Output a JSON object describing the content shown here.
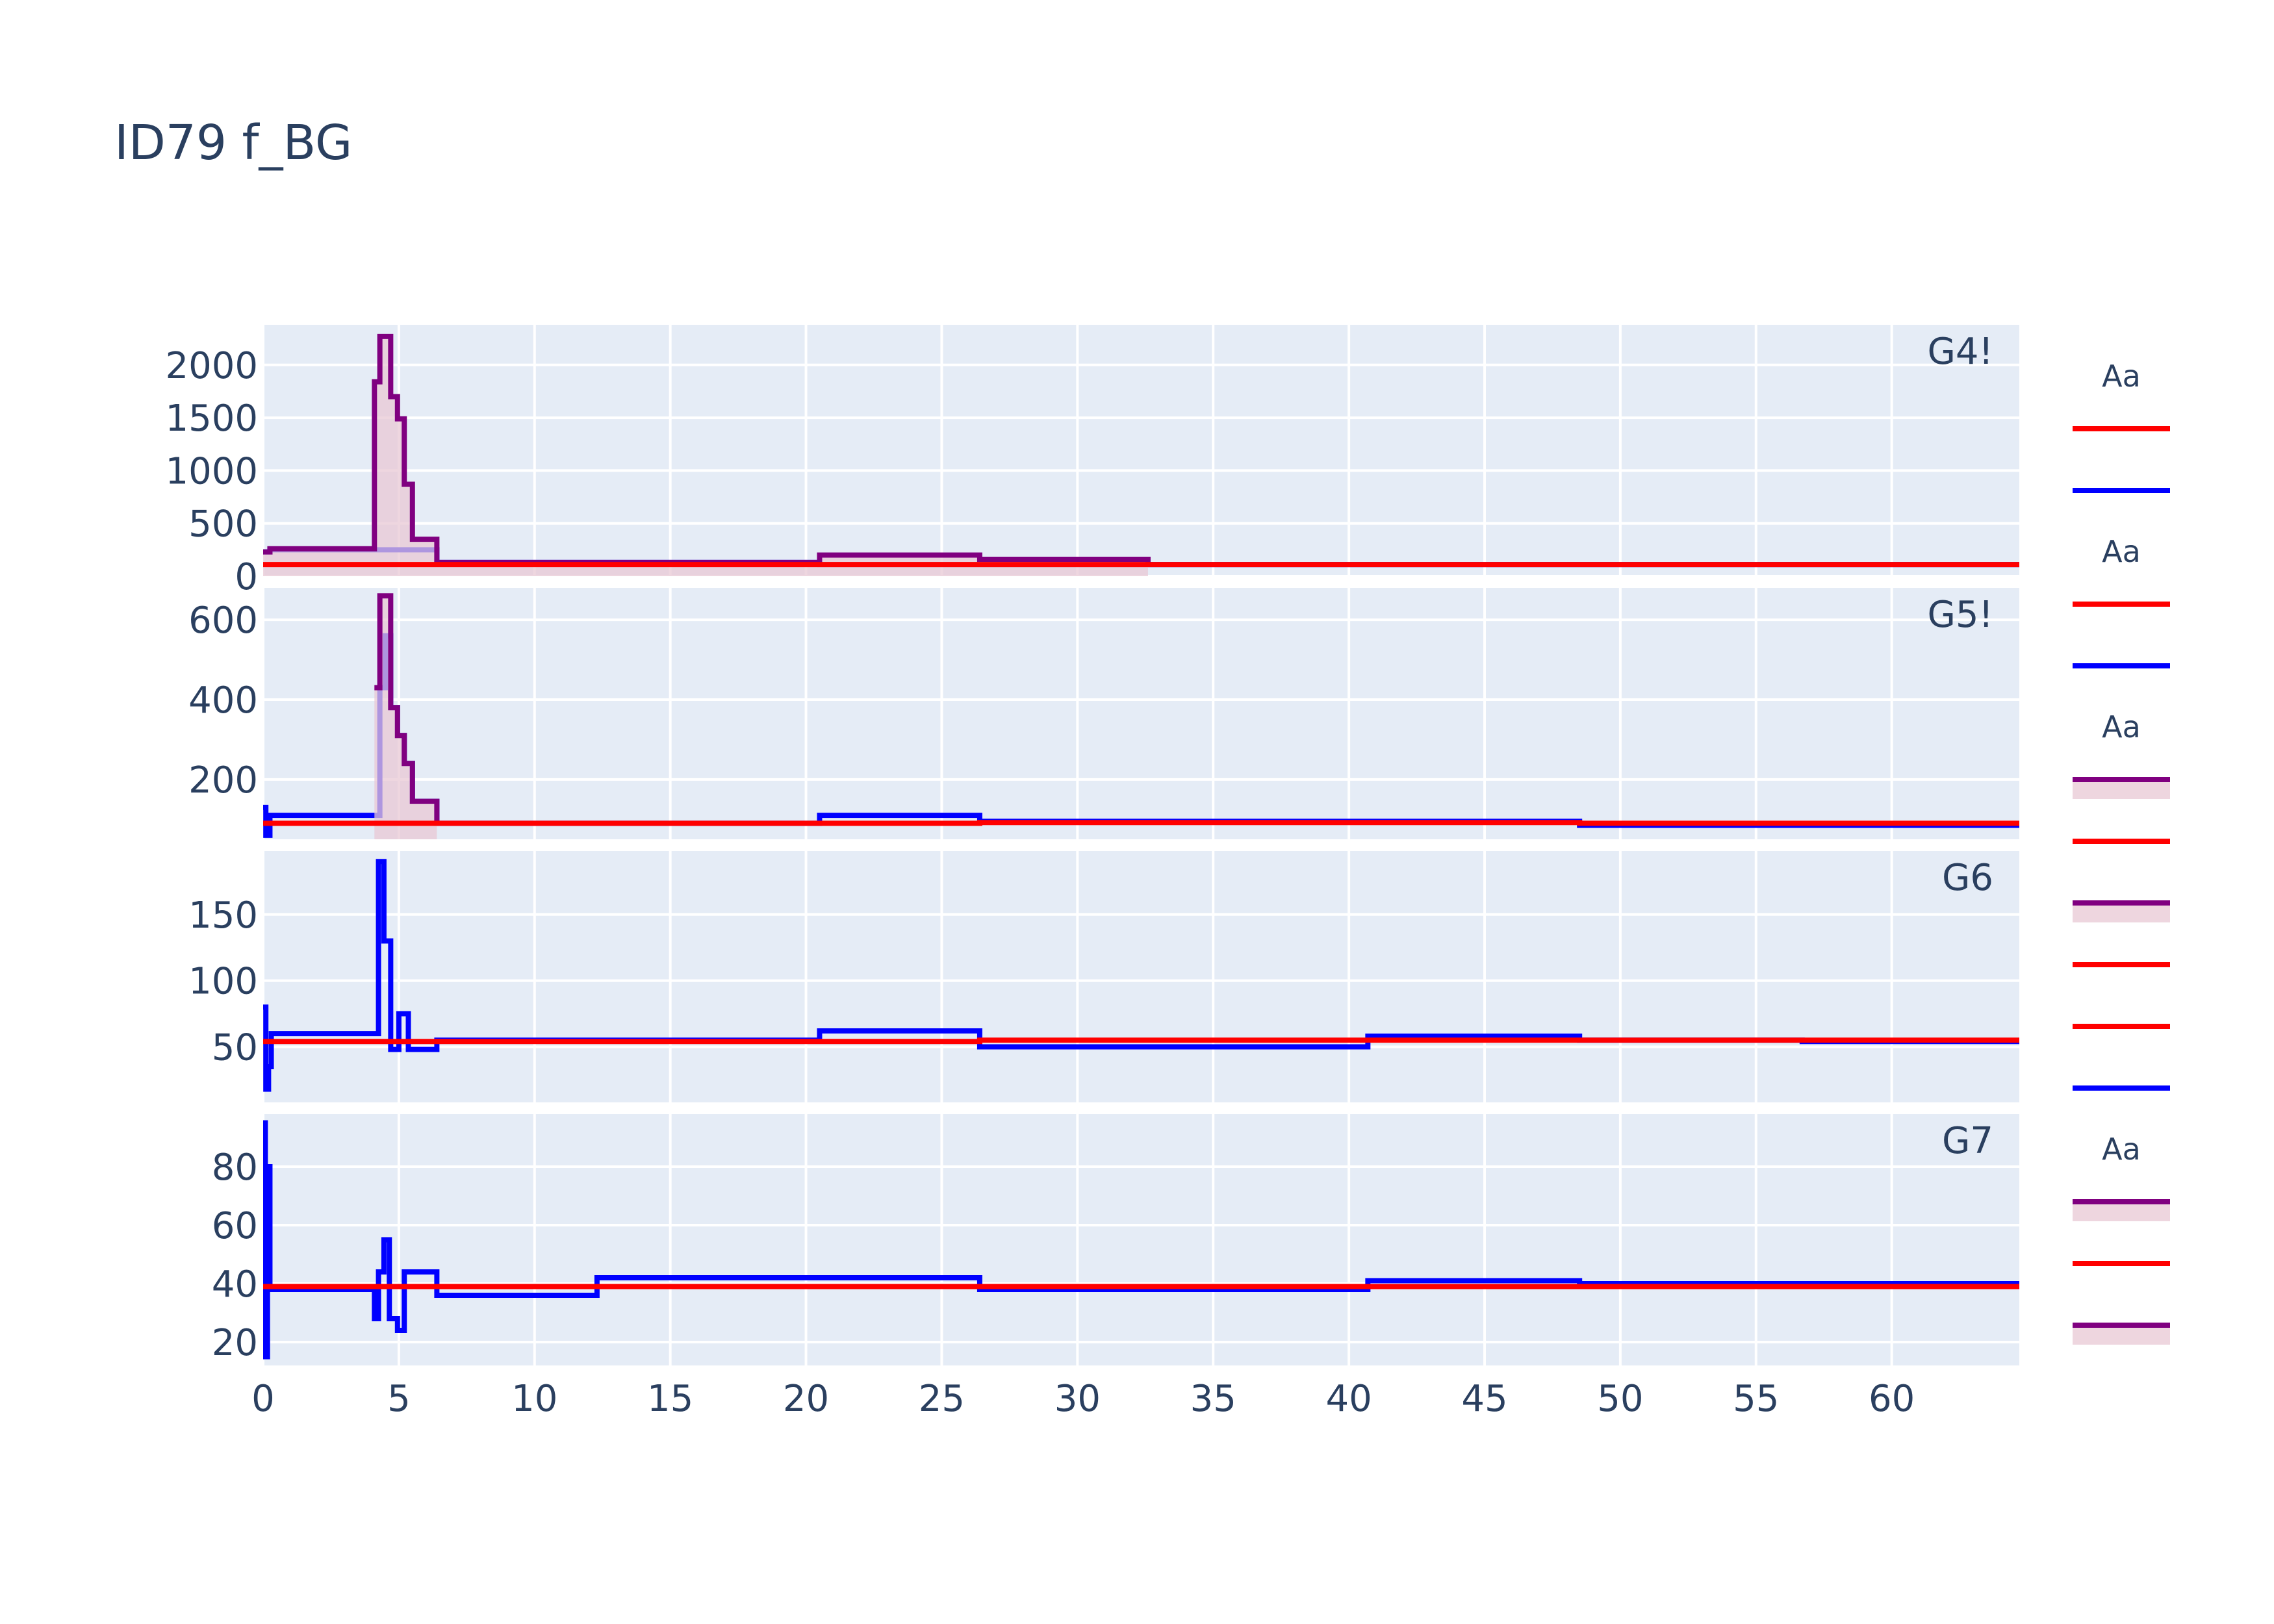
{
  "title": "ID79 f_BG",
  "colors": {
    "background": "#ffffff",
    "plot_bg": "#e5ecf6",
    "grid": "#ffffff",
    "text": "#2a3f5f",
    "blue": "#0000ff",
    "red": "#ff0000",
    "purple": "#800080",
    "fill": "#e8c8d4"
  },
  "chart_data": {
    "type": "line",
    "line_shape": "step",
    "shared_x": true,
    "xlim": [
      0,
      64.7
    ],
    "x_ticks": [
      0,
      5,
      10,
      15,
      20,
      25,
      30,
      35,
      40,
      45,
      50,
      55,
      60
    ],
    "grid": true,
    "legend": "right",
    "panels": [
      {
        "label": "G4!",
        "ylim": [
          0,
          2380
        ],
        "y_ticks": [
          0,
          500,
          1000,
          1500,
          2000
        ],
        "series": [
          {
            "color": "#0000ff",
            "shape": "step",
            "fill": false,
            "x": [
              0,
              0.25,
              4.1,
              6.4,
              20.5,
              26.4,
              32.6,
              64.7
            ],
            "y": [
              230,
              250,
              250,
              130,
              110,
              110,
              110,
              110
            ]
          },
          {
            "color": "#800080",
            "shape": "step",
            "fill": true,
            "x": [
              0,
              0.25,
              4.1,
              4.3,
              4.5,
              4.7,
              4.95,
              5.2,
              5.5,
              6.4,
              20.5,
              26.4,
              32.6
            ],
            "y": [
              230,
              260,
              1840,
              2270,
              2270,
              1700,
              1490,
              870,
              350,
              130,
              200,
              160,
              120
            ]
          },
          {
            "color": "#ff0000",
            "shape": "step",
            "fill": false,
            "x": [
              0,
              64.7
            ],
            "y": [
              110,
              110
            ]
          }
        ]
      },
      {
        "label": "G5!",
        "ylim": [
          50,
          680
        ],
        "y_ticks": [
          200,
          400,
          600
        ],
        "series": [
          {
            "color": "#0000ff",
            "shape": "step",
            "fill": false,
            "x": [
              0,
              0.1,
              0.25,
              4.1,
              4.3,
              4.5,
              4.7,
              4.95,
              5.2,
              5.5,
              6.4,
              20.5,
              26.4,
              48.5,
              64.7
            ],
            "y": [
              130,
              60,
              110,
              110,
              430,
              560,
              380,
              310,
              240,
              145,
              90,
              110,
              95,
              85,
              85
            ]
          },
          {
            "color": "#800080",
            "shape": "step",
            "fill": true,
            "x": [
              4.1,
              4.3,
              4.5,
              4.7,
              4.95,
              5.2,
              5.5,
              6.4
            ],
            "y": [
              430,
              660,
              660,
              380,
              310,
              240,
              145,
              90
            ]
          },
          {
            "color": "#ff0000",
            "shape": "step",
            "fill": false,
            "x": [
              0,
              20.5,
              26.4,
              48.5,
              64.7
            ],
            "y": [
              90,
              90,
              92,
              90,
              88
            ]
          }
        ]
      },
      {
        "label": "G6",
        "ylim": [
          8,
          198
        ],
        "y_ticks": [
          50,
          100,
          150
        ],
        "series": [
          {
            "color": "#0000ff",
            "shape": "step",
            "fill": false,
            "x": [
              0,
              0.1,
              0.2,
              0.3,
              4.1,
              4.25,
              4.45,
              4.7,
              5.0,
              5.35,
              6.4,
              20.5,
              26.4,
              40.7,
              48.5,
              56.7,
              64.7
            ],
            "y": [
              80,
              18,
              35,
              60,
              60,
              190,
              130,
              48,
              75,
              48,
              55,
              62,
              50,
              58,
              55,
              54,
              54
            ]
          },
          {
            "color": "#ff0000",
            "shape": "step",
            "fill": false,
            "x": [
              0,
              20.5,
              26.4,
              40.7,
              64.7
            ],
            "y": [
              54,
              54,
              55,
              55,
              55
            ]
          }
        ]
      },
      {
        "label": "G7",
        "ylim": [
          12,
          98
        ],
        "y_ticks": [
          20,
          40,
          60,
          80
        ],
        "series": [
          {
            "color": "#0000ff",
            "shape": "step",
            "fill": false,
            "x": [
              0,
              0.08,
              0.16,
              0.25,
              4.1,
              4.25,
              4.45,
              4.65,
              4.95,
              5.2,
              5.5,
              6.4,
              12.3,
              26.4,
              40.7,
              48.5,
              64.7
            ],
            "y": [
              95,
              15,
              80,
              38,
              28,
              44,
              55,
              28,
              24,
              44,
              44,
              36,
              42,
              38,
              41,
              40,
              40
            ]
          },
          {
            "color": "#ff0000",
            "shape": "step",
            "fill": false,
            "x": [
              0,
              64.7
            ],
            "y": [
              39,
              39
            ]
          }
        ]
      }
    ],
    "legend_items": [
      {
        "title": "Aa",
        "color": "#ff0000",
        "type": "line"
      },
      {
        "title": "",
        "color": "#0000ff",
        "type": "line"
      },
      {
        "title": "Aa",
        "color": "#ff0000",
        "type": "line"
      },
      {
        "title": "",
        "color": "#0000ff",
        "type": "line"
      },
      {
        "title": "Aa",
        "color": "#800080",
        "type": "fill-line"
      },
      {
        "title": "",
        "color": "#ff0000",
        "type": "line"
      },
      {
        "title": "",
        "color": "#800080",
        "type": "fill-line"
      },
      {
        "title": "",
        "color": "#ff0000",
        "type": "line"
      },
      {
        "title": "",
        "color": "#ff0000",
        "type": "line"
      },
      {
        "title": "",
        "color": "#0000ff",
        "type": "line"
      },
      {
        "title": "Aa",
        "color": "#800080",
        "type": "fill-line"
      },
      {
        "title": "",
        "color": "#ff0000",
        "type": "line"
      },
      {
        "title": "",
        "color": "#800080",
        "type": "fill-line"
      }
    ]
  }
}
